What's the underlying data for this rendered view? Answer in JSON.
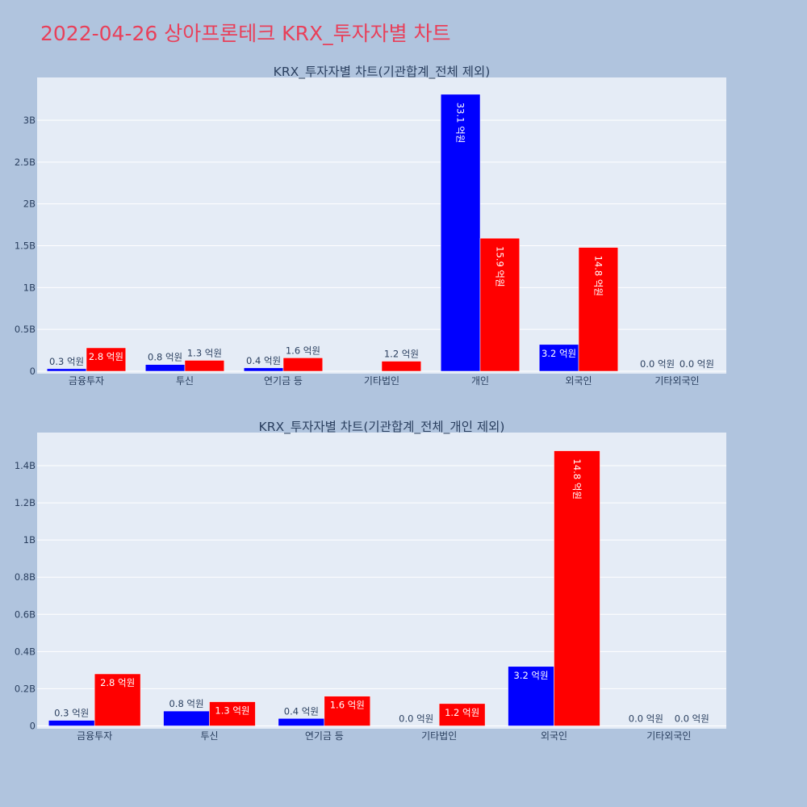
{
  "page": {
    "title": "2022-04-26 상아프론테크 KRX_투자자별 차트"
  },
  "colors": {
    "background": "#b0c4de",
    "plot_bg": "#e5ecf6",
    "title": "#e8405a",
    "series_blue": "#0000ff",
    "series_red": "#ff0000",
    "text": "#2a3f5f"
  },
  "chart_data": [
    {
      "type": "bar",
      "title": "KRX_투자자별 차트(기관합계_전체 제외)",
      "categories": [
        "금융투자",
        "투신",
        "연기금 등",
        "기타법인",
        "개인",
        "외국인",
        "기타외국인"
      ],
      "series": [
        {
          "color": "#0000ff",
          "values": [
            30000000,
            80000000,
            40000000,
            0,
            3310000000,
            320000000,
            0
          ],
          "labels": [
            "0.3 억원",
            "0.8 억원",
            "0.4 억원",
            "",
            "33.1 억원",
            "3.2 억원",
            "0.0 억원"
          ]
        },
        {
          "color": "#ff0000",
          "values": [
            280000000,
            130000000,
            160000000,
            120000000,
            1590000000,
            1480000000,
            0
          ],
          "labels": [
            "2.8 억원",
            "1.3 억원",
            "1.6 억원",
            "1.2 억원",
            "15.9 억원",
            "14.8 억원",
            "0.0 억원"
          ]
        }
      ],
      "ylim": [
        0,
        3500000000
      ],
      "yticks": [
        0,
        500000000,
        1000000000,
        1500000000,
        2000000000,
        2500000000,
        3000000000
      ],
      "ytick_labels": [
        "0",
        "0.5B",
        "1B",
        "1.5B",
        "2B",
        "2.5B",
        "3B"
      ],
      "grid": true,
      "legend": "none"
    },
    {
      "type": "bar",
      "title": "KRX_투자자별 차트(기관합계_전체_개인 제외)",
      "categories": [
        "금융투자",
        "투신",
        "연기금 등",
        "기타법인",
        "외국인",
        "기타외국인"
      ],
      "series": [
        {
          "color": "#0000ff",
          "values": [
            30000000,
            80000000,
            40000000,
            0,
            320000000,
            0
          ],
          "labels": [
            "0.3 억원",
            "0.8 억원",
            "0.4 억원",
            "0.0 억원",
            "3.2 억원",
            "0.0 억원"
          ]
        },
        {
          "color": "#ff0000",
          "values": [
            280000000,
            130000000,
            160000000,
            120000000,
            1480000000,
            0
          ],
          "labels": [
            "2.8 억원",
            "1.3 억원",
            "1.6 억원",
            "1.2 억원",
            "14.8 억원",
            "0.0 억원"
          ]
        }
      ],
      "ylim": [
        0,
        1580000000
      ],
      "yticks": [
        0,
        200000000,
        400000000,
        600000000,
        800000000,
        1000000000,
        1200000000,
        1400000000
      ],
      "ytick_labels": [
        "0",
        "0.2B",
        "0.4B",
        "0.6B",
        "0.8B",
        "1B",
        "1.2B",
        "1.4B"
      ],
      "grid": true,
      "legend": "none"
    }
  ]
}
